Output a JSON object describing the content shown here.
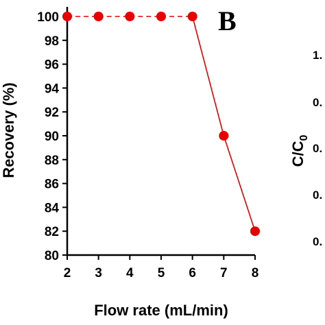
{
  "chart_data": {
    "type": "line",
    "panel_label": "B",
    "xlabel": "Flow rate (mL/min)",
    "ylabel": "Recovery (%)",
    "x": [
      2,
      3,
      4,
      5,
      6,
      7,
      8
    ],
    "xticks": [
      "2",
      "3",
      "4",
      "5",
      "6",
      "7",
      "8"
    ],
    "yticks": [
      "80",
      "82",
      "84",
      "86",
      "88",
      "90",
      "92",
      "94",
      "96",
      "98",
      "100"
    ],
    "xlim": [
      2,
      8
    ],
    "ylim": [
      80,
      101
    ],
    "series": [
      {
        "values": [
          100,
          100,
          100,
          100,
          100,
          90,
          82
        ],
        "color": "#e60000",
        "segment_styles": [
          "dashed",
          "dashed",
          "dashed",
          "dashed",
          "solid",
          "solid"
        ]
      }
    ],
    "grid": false
  },
  "neighbor_panel": {
    "ylabel_main": "C/C",
    "ylabel_sub": "0",
    "ticks": [
      "1.",
      "0.",
      "0.",
      "0.",
      "0."
    ]
  }
}
